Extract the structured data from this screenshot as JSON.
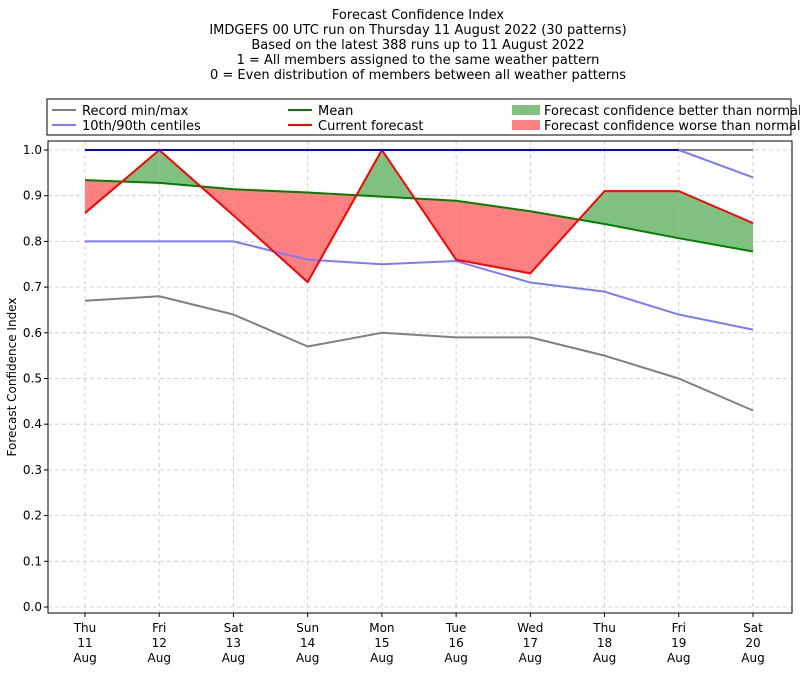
{
  "chart_data": {
    "type": "line",
    "title_lines": [
      "Forecast Confidence Index",
      "IMDGEFS 00 UTC run on Thursday 11 August 2022 (30 patterns)",
      "Based on the latest 388 runs up to 11 August 2022",
      "1 = All members assigned to the same weather pattern",
      "0 = Even distribution of members between all weather patterns"
    ],
    "ylabel": "Forecast Confidence Index",
    "ylim": [
      0,
      1.0
    ],
    "yticks": [
      0.0,
      0.1,
      0.2,
      0.3,
      0.4,
      0.5,
      0.6,
      0.7,
      0.8,
      0.9,
      1.0
    ],
    "ytick_labels": [
      "0.0",
      "0.1",
      "0.2",
      "0.3",
      "0.4",
      "0.5",
      "0.6",
      "0.7",
      "0.8",
      "0.9",
      "1.0"
    ],
    "categories": [
      [
        "Thu",
        "11",
        "Aug"
      ],
      [
        "Fri",
        "12",
        "Aug"
      ],
      [
        "Sat",
        "13",
        "Aug"
      ],
      [
        "Sun",
        "14",
        "Aug"
      ],
      [
        "Mon",
        "15",
        "Aug"
      ],
      [
        "Tue",
        "16",
        "Aug"
      ],
      [
        "Wed",
        "17",
        "Aug"
      ],
      [
        "Thu",
        "18",
        "Aug"
      ],
      [
        "Fri",
        "19",
        "Aug"
      ],
      [
        "Sat",
        "20",
        "Aug"
      ]
    ],
    "grid": true,
    "series": [
      {
        "key": "record_max",
        "name": "Record min/max",
        "color": "#808080",
        "values": [
          1.0,
          1.0,
          1.0,
          1.0,
          1.0,
          1.0,
          1.0,
          1.0,
          1.0,
          1.0
        ]
      },
      {
        "key": "record_min",
        "name": "Record min/max",
        "color": "#808080",
        "values": [
          0.67,
          0.68,
          0.64,
          0.57,
          0.6,
          0.59,
          0.59,
          0.55,
          0.5,
          0.43
        ]
      },
      {
        "key": "p90",
        "name": "10th/90th centiles",
        "color": "#7b7bff",
        "values": [
          1.0,
          1.0,
          1.0,
          1.0,
          1.0,
          1.0,
          1.0,
          1.0,
          1.0,
          0.94
        ]
      },
      {
        "key": "p10",
        "name": "10th/90th centiles",
        "color": "#7b7bff",
        "values": [
          0.8,
          0.8,
          0.8,
          0.76,
          0.75,
          0.757,
          0.71,
          0.69,
          0.64,
          0.607
        ]
      },
      {
        "key": "mean",
        "name": "Mean",
        "color": "#008000",
        "values": [
          0.934,
          0.928,
          0.914,
          0.907,
          0.898,
          0.889,
          0.866,
          0.838,
          0.807,
          0.778
        ]
      },
      {
        "key": "current",
        "name": "Current forecast",
        "color": "#ff0000",
        "values": [
          0.862,
          1.0,
          0.857,
          0.711,
          1.0,
          0.76,
          0.73,
          0.91,
          0.91,
          0.84
        ]
      }
    ],
    "legend": {
      "position": "top",
      "entries": [
        {
          "label": "Record min/max",
          "color": "#808080",
          "kind": "line"
        },
        {
          "label": "10th/90th centiles",
          "color": "#7b7bff",
          "kind": "line"
        },
        {
          "label": "Mean",
          "color": "#008000",
          "kind": "line"
        },
        {
          "label": "Current forecast",
          "color": "#ff0000",
          "kind": "line"
        },
        {
          "label": "Forecast confidence better than normal",
          "color": "#80c080",
          "kind": "patch"
        },
        {
          "label": "Forecast confidence worse than normal",
          "color": "#ff8080",
          "kind": "patch"
        }
      ]
    },
    "fill_colors": {
      "better": "#80c080",
      "worse": "#ff8080",
      "blue_top": "#0000ff"
    }
  }
}
